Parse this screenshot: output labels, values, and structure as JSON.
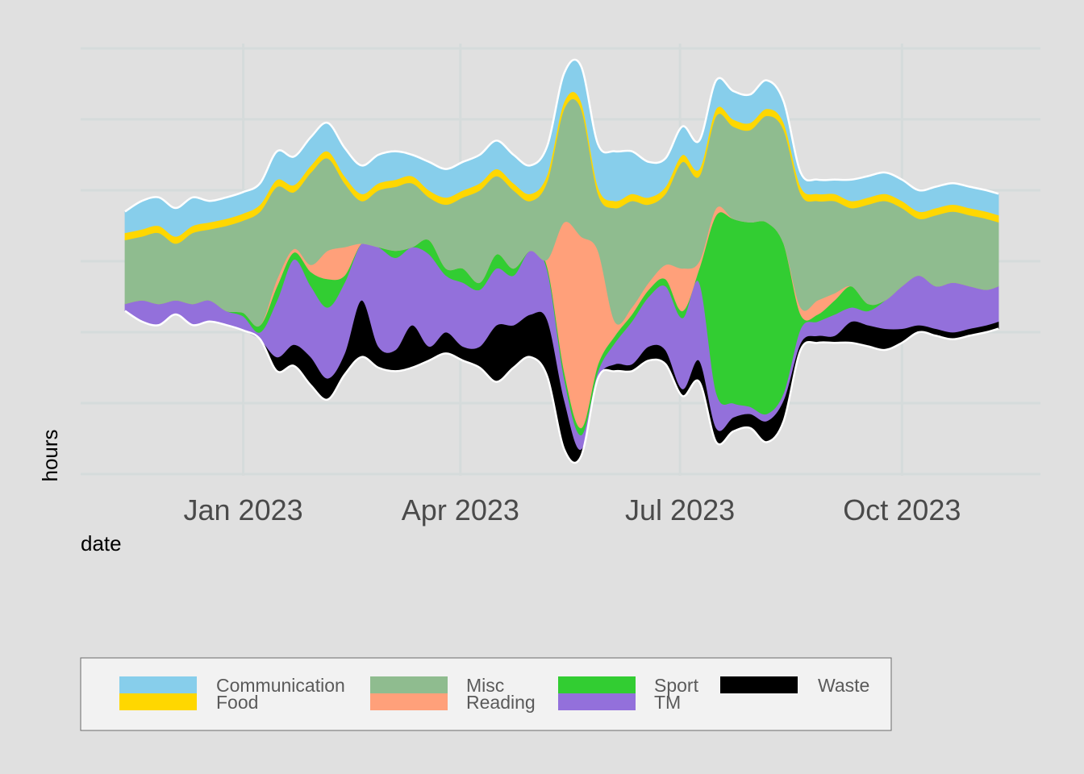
{
  "chart_data": {
    "type": "area",
    "subtype": "streamgraph",
    "title": "",
    "xlabel": "date",
    "ylabel": "hours",
    "x_ticks": [
      "Jan 2023",
      "Apr 2023",
      "Jul 2023",
      "Oct 2023"
    ],
    "x_tick_dates": [
      "2023-01-01",
      "2023-04-01",
      "2023-07-01",
      "2023-10-01"
    ],
    "xlim": [
      "2022-11-13",
      "2023-11-10"
    ],
    "y_ticks_shown": false,
    "grid": true,
    "legend_position": "bottom",
    "x": [
      "2022-11-13",
      "2022-11-20",
      "2022-11-27",
      "2022-12-04",
      "2022-12-11",
      "2022-12-18",
      "2022-12-25",
      "2023-01-01",
      "2023-01-08",
      "2023-01-15",
      "2023-01-22",
      "2023-01-29",
      "2023-02-05",
      "2023-02-12",
      "2023-02-19",
      "2023-02-26",
      "2023-03-05",
      "2023-03-12",
      "2023-03-19",
      "2023-03-26",
      "2023-04-02",
      "2023-04-09",
      "2023-04-16",
      "2023-04-23",
      "2023-04-30",
      "2023-05-07",
      "2023-05-14",
      "2023-05-21",
      "2023-05-28",
      "2023-06-04",
      "2023-06-11",
      "2023-06-18",
      "2023-06-25",
      "2023-07-02",
      "2023-07-09",
      "2023-07-16",
      "2023-07-23",
      "2023-07-30",
      "2023-08-06",
      "2023-08-13",
      "2023-08-20",
      "2023-08-27",
      "2023-09-03",
      "2023-09-10",
      "2023-09-17",
      "2023-09-24",
      "2023-10-01",
      "2023-10-08",
      "2023-10-15",
      "2023-10-22",
      "2023-10-29",
      "2023-11-05",
      "2023-11-10"
    ],
    "series": [
      {
        "name": "Waste",
        "color": "#000000",
        "values": [
          0,
          0,
          0,
          0,
          0,
          0,
          0,
          0,
          0,
          0.2,
          0.3,
          0.4,
          0.3,
          0.3,
          0.8,
          0.3,
          0.3,
          0.6,
          0.2,
          0.3,
          0.2,
          0.3,
          0.8,
          0.6,
          0.6,
          0.8,
          0.7,
          0.1,
          0,
          0.1,
          0.1,
          0.2,
          0.2,
          0.1,
          0.3,
          0.2,
          0.2,
          0.2,
          0.3,
          0.3,
          0.1,
          0.1,
          0.1,
          0.3,
          0.3,
          0.3,
          0.2,
          0.1,
          0.1,
          0.1,
          0.1,
          0.1,
          0.1
        ]
      },
      {
        "name": "TM",
        "color": "#9370db",
        "values": [
          0.1,
          0.3,
          0.3,
          0.2,
          0.3,
          0.3,
          0.2,
          0.2,
          0.1,
          0.8,
          1.2,
          1.0,
          1.0,
          1.0,
          0.8,
          1.4,
          1.3,
          1.1,
          1.3,
          0.8,
          0.9,
          0.8,
          0.8,
          0.7,
          0.9,
          0.7,
          0.3,
          0.2,
          0.1,
          0.3,
          0.6,
          0.7,
          0.9,
          1.0,
          1.1,
          0.5,
          0.2,
          0.1,
          0.1,
          0.1,
          0.2,
          0.2,
          0.3,
          0.2,
          0.2,
          0.4,
          0.6,
          0.7,
          0.6,
          0.7,
          0.6,
          0.5,
          0.5
        ]
      },
      {
        "name": "Sport",
        "color": "#32cd32",
        "values": [
          0,
          0,
          0,
          0,
          0,
          0,
          0,
          0.05,
          0.1,
          0.2,
          0.1,
          0.2,
          0.4,
          0.1,
          0,
          0,
          0.1,
          0,
          0.2,
          0.1,
          0.2,
          0.1,
          0.2,
          0.1,
          0,
          0.05,
          0.1,
          0.1,
          0.1,
          0.1,
          0.1,
          0.1,
          0.1,
          0.1,
          0.2,
          2.5,
          2.6,
          2.6,
          2.7,
          2.1,
          0.2,
          0.1,
          0.2,
          0.3,
          0.1,
          0,
          0,
          0,
          0,
          0,
          0,
          0,
          0
        ]
      },
      {
        "name": "Reading",
        "color": "#ffa07a",
        "values": [
          0,
          0,
          0,
          0,
          0,
          0,
          0,
          0,
          0,
          0.1,
          0.05,
          0.1,
          0.4,
          0.4,
          0,
          0,
          0,
          0,
          0,
          0,
          0,
          0,
          0,
          0,
          0,
          0.1,
          2.1,
          2.7,
          1.6,
          0.2,
          0.1,
          0.1,
          0.2,
          0.6,
          0.1,
          0.1,
          0,
          0,
          0,
          0,
          0.1,
          0.2,
          0.1,
          0,
          0,
          0,
          0,
          0,
          0,
          0,
          0,
          0,
          0
        ]
      },
      {
        "name": "Misc",
        "color": "#8fbc8f",
        "values": [
          0.9,
          0.9,
          1.0,
          0.8,
          1.0,
          1.0,
          1.2,
          1.3,
          1.6,
          1.3,
          0.8,
          1.3,
          1.3,
          0.9,
          0.6,
          0.8,
          0.9,
          0.9,
          0.6,
          0.9,
          1.0,
          1.3,
          1.1,
          1.1,
          0.7,
          1.1,
          1.6,
          1.8,
          0.8,
          1.6,
          1.5,
          1.1,
          1.0,
          1.5,
          1.2,
          1.3,
          1.3,
          1.3,
          1.5,
          1.6,
          1.6,
          1.4,
          1.3,
          1.1,
          1.4,
          1.4,
          1.1,
          0.8,
          1.0,
          1.0,
          1.0,
          1.0,
          0.9
        ]
      },
      {
        "name": "Food",
        "color": "#ffd700",
        "values": [
          0.1,
          0.1,
          0.1,
          0.1,
          0.1,
          0.1,
          0.1,
          0.1,
          0.1,
          0.1,
          0.1,
          0.1,
          0.1,
          0.1,
          0.1,
          0.1,
          0.1,
          0.1,
          0.1,
          0.1,
          0.1,
          0.1,
          0.1,
          0.1,
          0.1,
          0.1,
          0.1,
          0.1,
          0.1,
          0.1,
          0.1,
          0.1,
          0.1,
          0.1,
          0.1,
          0.1,
          0.1,
          0.1,
          0.1,
          0.1,
          0.1,
          0.1,
          0.1,
          0.1,
          0.1,
          0.1,
          0.1,
          0.1,
          0.1,
          0.1,
          0.1,
          0.1,
          0.1
        ]
      },
      {
        "name": "Communication",
        "color": "#87ceeb",
        "values": [
          0.3,
          0.4,
          0.4,
          0.4,
          0.4,
          0.3,
          0.3,
          0.3,
          0.3,
          0.4,
          0.4,
          0.4,
          0.4,
          0.4,
          0.4,
          0.4,
          0.4,
          0.3,
          0.4,
          0.4,
          0.4,
          0.4,
          0.4,
          0.4,
          0.4,
          0.4,
          0.4,
          0.5,
          0.6,
          0.7,
          0.6,
          0.5,
          0.4,
          0.4,
          0.4,
          0.4,
          0.4,
          0.4,
          0.4,
          0.3,
          0.2,
          0.2,
          0.2,
          0.3,
          0.3,
          0.3,
          0.3,
          0.3,
          0.3,
          0.3,
          0.3,
          0.3,
          0.3
        ]
      }
    ],
    "legend": {
      "entries": [
        "Communication",
        "Food",
        "Misc",
        "Reading",
        "Sport",
        "TM",
        "Waste"
      ]
    }
  }
}
